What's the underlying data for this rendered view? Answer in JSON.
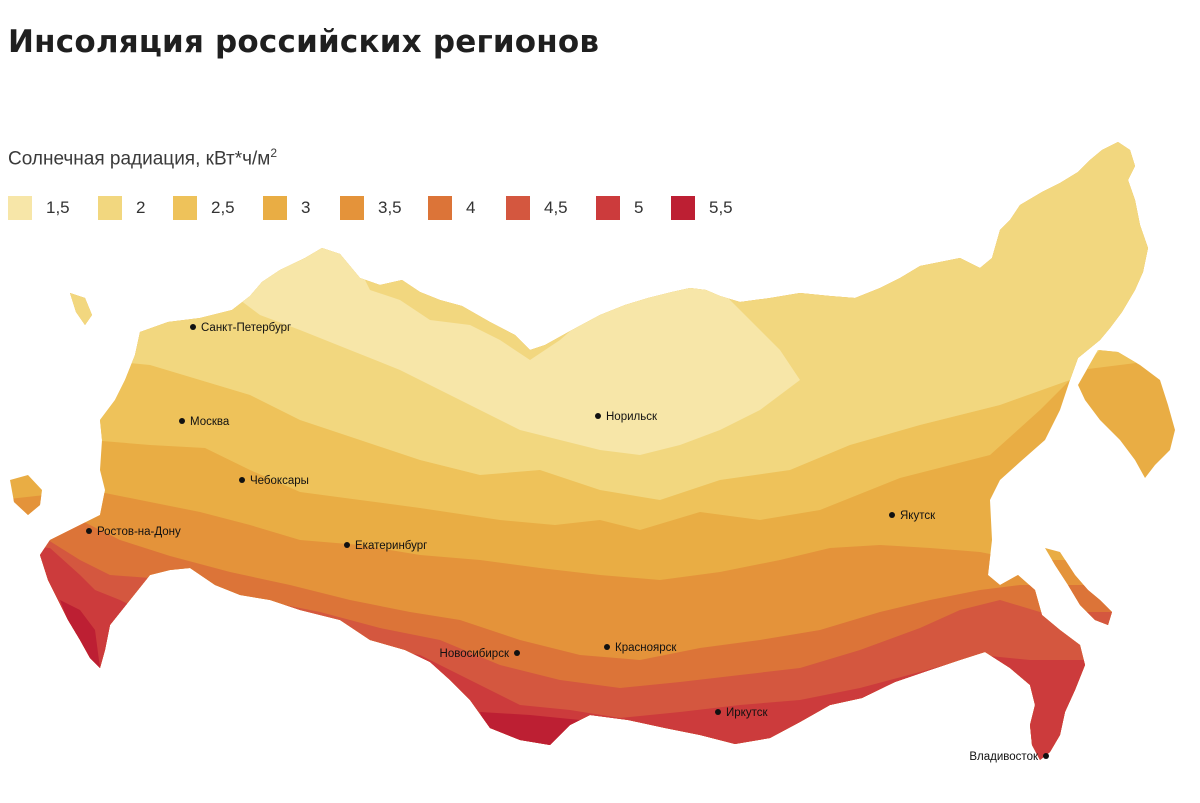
{
  "title": "Инсоляция российских регионов",
  "legend": {
    "title": "Солнечная радиация, кВт*ч/м",
    "title_sup": "2",
    "items": [
      {
        "label": "1,5",
        "color": "#f7e6a8"
      },
      {
        "label": "2",
        "color": "#f2d77f"
      },
      {
        "label": "2,5",
        "color": "#eec25a"
      },
      {
        "label": "3",
        "color": "#e9ad44"
      },
      {
        "label": "3,5",
        "color": "#e4933a"
      },
      {
        "label": "4",
        "color": "#dc7438"
      },
      {
        "label": "4,5",
        "color": "#d4573f"
      },
      {
        "label": "5",
        "color": "#cc3b3c"
      },
      {
        "label": "5,5",
        "color": "#bd1f33"
      }
    ]
  },
  "cities": [
    "Санкт-Петербург",
    "Москва",
    "Чебоксары",
    "Ростов-на-Дону",
    "Екатеринбург",
    "Норильск",
    "Якутск",
    "Новосибирск",
    "Красноярск",
    "Иркутск",
    "Владивосток"
  ]
}
